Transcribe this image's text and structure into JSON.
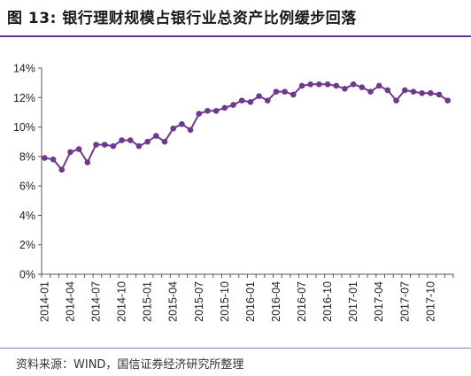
{
  "figure": {
    "title": "图 13: 银行理财规模占银行业总资产比例缓步回落",
    "source": "资料来源：WIND，国信证券经济研究所整理"
  },
  "chart_data": {
    "type": "line",
    "title": "图 13: 银行理财规模占银行业总资产比例缓步回落",
    "xlabel": "",
    "ylabel": "",
    "ylim": [
      0,
      14
    ],
    "yticks": [
      "0%",
      "2%",
      "4%",
      "6%",
      "8%",
      "10%",
      "12%",
      "14%"
    ],
    "ytick_values": [
      0,
      2,
      4,
      6,
      8,
      10,
      12,
      14
    ],
    "xticks": [
      "2014-01",
      "2014-04",
      "2014-07",
      "2014-10",
      "2015-01",
      "2015-04",
      "2015-07",
      "2015-10",
      "2016-01",
      "2016-04",
      "2016-07",
      "2016-10",
      "2017-01",
      "2017-04",
      "2017-07",
      "2017-10"
    ],
    "grid": false,
    "legend": "none",
    "color": "#6b3a8c",
    "x": [
      "2014-01",
      "2014-02",
      "2014-03",
      "2014-04",
      "2014-05",
      "2014-06",
      "2014-07",
      "2014-08",
      "2014-09",
      "2014-10",
      "2014-11",
      "2014-12",
      "2015-01",
      "2015-02",
      "2015-03",
      "2015-04",
      "2015-05",
      "2015-06",
      "2015-07",
      "2015-08",
      "2015-09",
      "2015-10",
      "2015-11",
      "2015-12",
      "2016-01",
      "2016-02",
      "2016-03",
      "2016-04",
      "2016-05",
      "2016-06",
      "2016-07",
      "2016-08",
      "2016-09",
      "2016-10",
      "2016-11",
      "2016-12",
      "2017-01",
      "2017-02",
      "2017-03",
      "2017-04",
      "2017-05",
      "2017-06",
      "2017-07",
      "2017-08",
      "2017-09",
      "2017-10",
      "2017-11",
      "2017-12"
    ],
    "series": [
      {
        "values": [
          7.9,
          7.8,
          7.1,
          8.3,
          8.5,
          7.6,
          8.8,
          8.8,
          8.7,
          9.1,
          9.1,
          8.7,
          9.0,
          9.4,
          9.0,
          9.9,
          10.2,
          9.8,
          10.9,
          11.1,
          11.1,
          11.3,
          11.5,
          11.8,
          11.7,
          12.1,
          11.8,
          12.4,
          12.4,
          12.2,
          12.8,
          12.9,
          12.9,
          12.9,
          12.8,
          12.6,
          12.9,
          12.7,
          12.4,
          12.8,
          12.5,
          11.8,
          12.5,
          12.4,
          12.3,
          12.3,
          12.2,
          11.8
        ]
      }
    ]
  }
}
